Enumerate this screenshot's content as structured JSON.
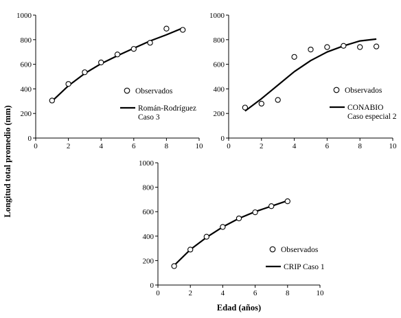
{
  "figure": {
    "ylabel": "Longitud total promedio  (mm)",
    "xlabel": "Edad (años)"
  },
  "chart_data": [
    {
      "type": "scatter+line",
      "xlim": [
        0,
        10
      ],
      "ylim": [
        0,
        1000
      ],
      "xticks": [
        0,
        2,
        4,
        6,
        8,
        10
      ],
      "yticks": [
        0,
        200,
        400,
        600,
        800,
        1000
      ],
      "observed": {
        "name": "Observados",
        "x": [
          1,
          2,
          3,
          4,
          5,
          6,
          7,
          8,
          9
        ],
        "y": [
          305,
          440,
          535,
          615,
          680,
          725,
          775,
          890,
          880
        ]
      },
      "model": {
        "name_line1": "Román-Rodríguez",
        "name_line2": "Caso 3",
        "x": [
          1,
          2,
          3,
          4,
          5,
          6,
          7,
          8,
          9
        ],
        "y": [
          300,
          425,
          525,
          605,
          670,
          730,
          790,
          840,
          895
        ]
      },
      "grid": false,
      "legend_position": "center-right"
    },
    {
      "type": "scatter+line",
      "xlim": [
        0,
        10
      ],
      "ylim": [
        0,
        1000
      ],
      "xticks": [
        0,
        2,
        4,
        6,
        8,
        10
      ],
      "yticks": [
        0,
        200,
        400,
        600,
        800,
        1000
      ],
      "observed": {
        "name": "Observados",
        "x": [
          1,
          2,
          3,
          4,
          5,
          6,
          7,
          8,
          9
        ],
        "y": [
          248,
          280,
          310,
          660,
          720,
          740,
          750,
          740,
          745
        ]
      },
      "model": {
        "name_line1": "CONABIO",
        "name_line2": "Caso especial 2",
        "x": [
          1,
          2,
          3,
          4,
          5,
          6,
          7,
          8,
          9
        ],
        "y": [
          220,
          320,
          430,
          540,
          630,
          700,
          750,
          790,
          805
        ]
      },
      "grid": false,
      "legend_position": "center-right"
    },
    {
      "type": "scatter+line",
      "xlim": [
        0,
        10
      ],
      "ylim": [
        0,
        1000
      ],
      "xticks": [
        0,
        2,
        4,
        6,
        8,
        10
      ],
      "yticks": [
        0,
        200,
        400,
        600,
        800,
        1000
      ],
      "observed": {
        "name": "Observados",
        "x": [
          1,
          2,
          3,
          4,
          5,
          6,
          7,
          8
        ],
        "y": [
          155,
          290,
          395,
          475,
          545,
          595,
          645,
          685
        ]
      },
      "model": {
        "name_line1": "CRIP Caso 1",
        "name_line2": "",
        "x": [
          1,
          2,
          3,
          4,
          5,
          6,
          7,
          8
        ],
        "y": [
          160,
          290,
          390,
          475,
          545,
          600,
          645,
          690
        ]
      },
      "grid": false,
      "legend_position": "bottom-right"
    }
  ]
}
